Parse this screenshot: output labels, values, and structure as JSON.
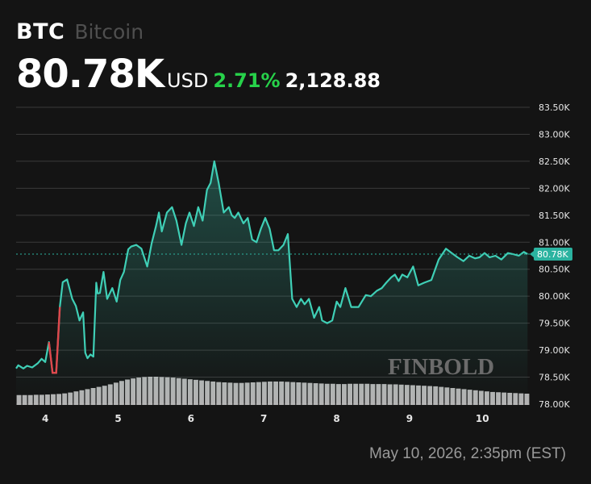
{
  "header": {
    "symbol": "BTC",
    "name": "Bitcoin",
    "price": "80.78K",
    "currency": "USD",
    "change_pct": "2.71%",
    "change_abs": "2,128.88"
  },
  "timestamp": "May 10, 2026, 2:35pm (EST)",
  "watermark": "FINBOLD",
  "colors": {
    "background": "#141414",
    "line": "#3fcfb6",
    "line_down": "#e0474c",
    "gain": "#27d24a",
    "badge": "#2bb3a0",
    "grid": "#3a3a3a",
    "volume": "#cfcfcf"
  },
  "chart_data": {
    "type": "line",
    "y_ticks": [
      "83.50K",
      "83.00K",
      "82.50K",
      "82.00K",
      "81.50K",
      "81.00K",
      "80.50K",
      "80.00K",
      "79.50K",
      "79.00K",
      "78.50K",
      "78.00K"
    ],
    "x_ticks": [
      "4",
      "5",
      "6",
      "7",
      "8",
      "9",
      "10"
    ],
    "x_tick_values": [
      4,
      5,
      6,
      7,
      8,
      9,
      10
    ],
    "xlim": [
      3.6,
      10.65
    ],
    "ylim": [
      78.0,
      83.5
    ],
    "last_value": 80.78,
    "last_label": "80.78K",
    "series": [
      {
        "x": [
          3.6,
          3.63,
          3.7,
          3.75,
          3.82,
          3.9,
          3.95,
          4.0,
          4.05,
          4.1,
          4.15,
          4.2,
          4.24,
          4.3,
          4.37,
          4.42,
          4.47,
          4.52,
          4.55,
          4.58,
          4.62,
          4.66,
          4.7,
          4.72,
          4.75,
          4.8,
          4.85,
          4.92,
          4.98,
          5.03,
          5.08,
          5.14,
          5.18,
          5.25,
          5.32,
          5.4,
          5.46,
          5.52,
          5.56,
          5.6,
          5.67,
          5.74,
          5.8,
          5.87,
          5.93,
          5.98,
          6.04,
          6.1,
          6.16,
          6.22,
          6.27,
          6.32,
          6.38,
          6.45,
          6.52,
          6.56,
          6.6,
          6.65,
          6.72,
          6.78,
          6.84,
          6.9,
          6.96,
          7.02,
          7.08,
          7.14,
          7.2,
          7.27,
          7.33,
          7.39,
          7.45,
          7.51,
          7.56,
          7.62,
          7.69,
          7.76,
          7.8,
          7.87,
          7.94,
          8.0,
          8.05,
          8.12,
          8.2,
          8.3,
          8.4,
          8.47,
          8.55,
          8.62,
          8.68,
          8.75,
          8.8,
          8.85,
          8.9,
          8.97,
          9.05,
          9.12,
          9.2,
          9.3,
          9.4,
          9.5,
          9.58,
          9.66,
          9.74,
          9.82,
          9.9,
          9.96,
          10.03,
          10.1,
          10.18,
          10.26,
          10.35,
          10.42,
          10.5,
          10.57,
          10.62
        ],
        "y": [
          78.66,
          78.72,
          78.66,
          78.71,
          78.68,
          78.76,
          78.84,
          78.78,
          79.15,
          78.58,
          78.58,
          79.8,
          80.26,
          80.31,
          79.95,
          79.82,
          79.55,
          79.7,
          78.95,
          78.85,
          78.92,
          78.88,
          80.25,
          80.05,
          80.06,
          80.45,
          79.95,
          80.15,
          79.9,
          80.3,
          80.45,
          80.87,
          80.92,
          80.95,
          80.88,
          80.55,
          80.98,
          81.3,
          81.55,
          81.2,
          81.55,
          81.65,
          81.4,
          80.95,
          81.35,
          81.55,
          81.3,
          81.65,
          81.4,
          81.97,
          82.1,
          82.5,
          82.1,
          81.55,
          81.65,
          81.5,
          81.45,
          81.55,
          81.35,
          81.45,
          81.05,
          81.0,
          81.25,
          81.45,
          81.25,
          80.85,
          80.85,
          80.95,
          81.15,
          79.95,
          79.8,
          79.95,
          79.85,
          79.95,
          79.6,
          79.8,
          79.55,
          79.5,
          79.55,
          79.9,
          79.8,
          80.15,
          79.8,
          79.8,
          80.02,
          80.0,
          80.1,
          80.15,
          80.25,
          80.35,
          80.4,
          80.28,
          80.4,
          80.35,
          80.55,
          80.2,
          80.25,
          80.3,
          80.68,
          80.88,
          80.8,
          80.72,
          80.65,
          80.75,
          80.7,
          80.72,
          80.8,
          80.72,
          80.75,
          80.68,
          80.8,
          80.78,
          80.75,
          80.82,
          80.78
        ]
      }
    ],
    "volume": [
      0.35,
      0.35,
      0.35,
      0.36,
      0.36,
      0.37,
      0.38,
      0.39,
      0.41,
      0.44,
      0.48,
      0.52,
      0.56,
      0.6,
      0.64,
      0.68,
      0.73,
      0.79,
      0.85,
      0.9,
      0.94,
      0.97,
      0.99,
      1.0,
      1.0,
      0.99,
      0.98,
      0.97,
      0.95,
      0.93,
      0.91,
      0.89,
      0.87,
      0.85,
      0.83,
      0.81,
      0.8,
      0.79,
      0.78,
      0.78,
      0.79,
      0.8,
      0.81,
      0.82,
      0.83,
      0.83,
      0.83,
      0.82,
      0.81,
      0.8,
      0.79,
      0.78,
      0.77,
      0.76,
      0.75,
      0.75,
      0.74,
      0.74,
      0.75,
      0.75,
      0.75,
      0.75,
      0.74,
      0.74,
      0.74,
      0.73,
      0.73,
      0.72,
      0.71,
      0.7,
      0.69,
      0.68,
      0.67,
      0.66,
      0.64,
      0.62,
      0.6,
      0.58,
      0.56,
      0.54,
      0.52,
      0.5,
      0.48,
      0.46,
      0.45,
      0.44,
      0.43,
      0.42,
      0.41,
      0.4
    ]
  }
}
